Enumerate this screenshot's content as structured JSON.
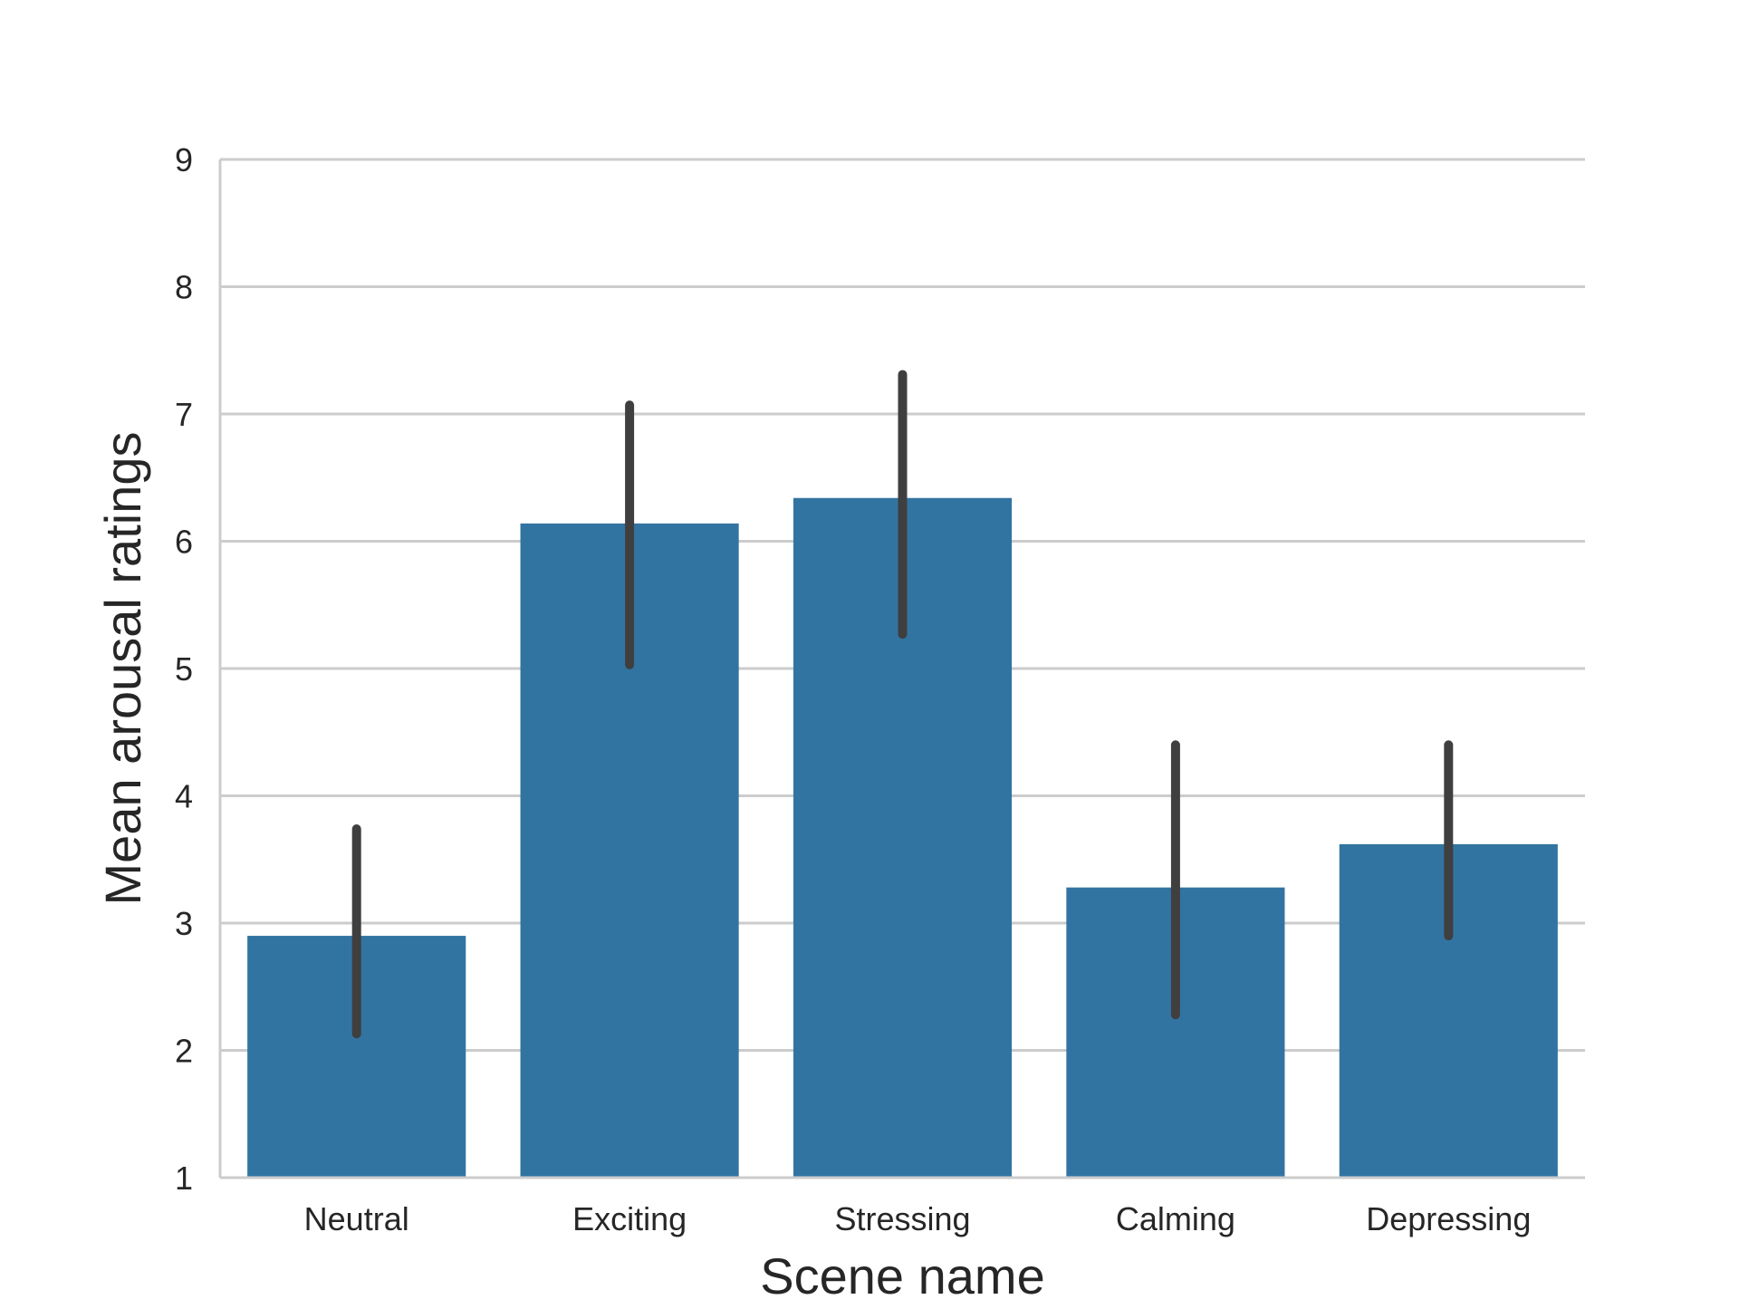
{
  "chart_data": {
    "type": "bar",
    "title": "",
    "xlabel": "Scene name",
    "ylabel": "Mean arousal ratings",
    "categories": [
      "Neutral",
      "Exciting",
      "Stressing",
      "Calming",
      "Depressing"
    ],
    "values": [
      2.9,
      6.14,
      6.34,
      3.28,
      3.62
    ],
    "error_low": [
      2.13,
      5.03,
      5.27,
      2.28,
      2.9
    ],
    "error_high": [
      3.74,
      7.07,
      7.31,
      4.4,
      4.4
    ],
    "ylim": [
      1,
      9
    ],
    "yticks": [
      "1",
      "2",
      "3",
      "4",
      "5",
      "6",
      "7",
      "8",
      "9"
    ],
    "grid": "horizontal",
    "bar_color": "#3274a1",
    "errorbar_color": "#3f3f3f",
    "grid_color": "#cccccc"
  }
}
